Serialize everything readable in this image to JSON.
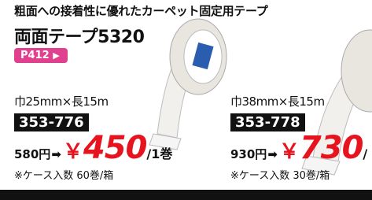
{
  "header": {
    "subtitle": "粗面への接着性に優れたカーペット固定用テープ",
    "title": "両面テープ5320",
    "badge": "P412"
  },
  "products": [
    {
      "size": "巾25mm×長15m",
      "code": "353-776",
      "list_price": "580円",
      "currency": "￥",
      "price": "450",
      "unit": "/1巻",
      "case": "※ケース入数 60巻/箱"
    },
    {
      "size": "巾38mm×長15m",
      "code": "353-778",
      "list_price": "930円",
      "currency": "￥",
      "price": "730",
      "unit": "/",
      "case": "※ケース入数 30巻/箱"
    }
  ]
}
